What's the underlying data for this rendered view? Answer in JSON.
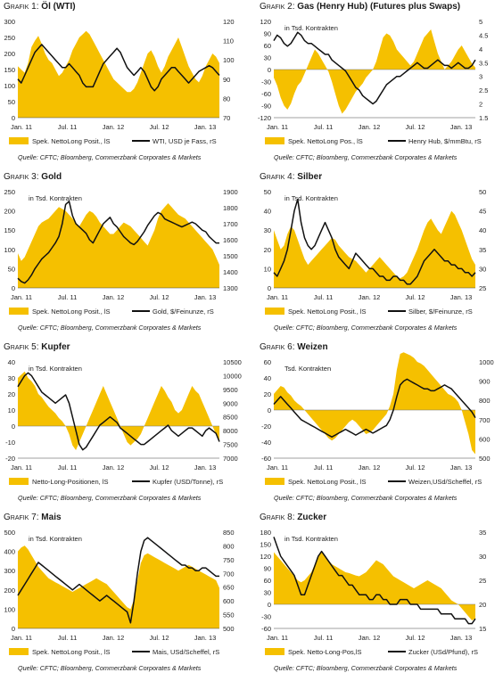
{
  "colors": {
    "fill": "#f5c000",
    "line": "#111111",
    "grid": "#d0d0d0",
    "text": "#222222"
  },
  "source_text": "Quelle: CFTC; Bloomberg, Commerzbank Corporates & Markets",
  "chart_data": [
    {
      "type": "area+line",
      "prefix": "Grafik 1:",
      "name": "Öl (WTI)",
      "suffix": "",
      "unit_label": "",
      "xlabels": [
        "Jan. 11",
        "Jul. 11",
        "Jan. 12",
        "Jul. 12",
        "Jan. 13"
      ],
      "ylim_left": [
        0,
        300
      ],
      "yticks_left": [
        0,
        50,
        100,
        150,
        200,
        250,
        300
      ],
      "ylim_right": [
        70,
        120
      ],
      "yticks_right": [
        70,
        80,
        90,
        100,
        110,
        120
      ],
      "area_label": "Spek. NettoLong Posit., lS",
      "line_label": "WTI, USD je Fass, rS",
      "area": [
        160,
        150,
        140,
        170,
        220,
        240,
        255,
        230,
        200,
        180,
        170,
        150,
        130,
        140,
        160,
        180,
        210,
        230,
        250,
        260,
        270,
        260,
        240,
        220,
        200,
        180,
        160,
        140,
        120,
        110,
        100,
        90,
        80,
        80,
        90,
        110,
        140,
        170,
        200,
        210,
        190,
        160,
        140,
        160,
        190,
        210,
        230,
        250,
        220,
        190,
        160,
        140,
        120,
        110,
        130,
        160,
        180,
        200,
        190,
        170
      ],
      "line": [
        90,
        88,
        92,
        96,
        100,
        104,
        106,
        108,
        106,
        104,
        102,
        100,
        98,
        96,
        96,
        98,
        96,
        94,
        92,
        88,
        86,
        86,
        86,
        90,
        94,
        98,
        100,
        102,
        104,
        106,
        104,
        100,
        96,
        94,
        92,
        94,
        96,
        94,
        90,
        86,
        84,
        86,
        90,
        92,
        94,
        96,
        96,
        94,
        92,
        90,
        88,
        90,
        92,
        94,
        95,
        96,
        97,
        96,
        94,
        92
      ]
    },
    {
      "type": "area+line",
      "prefix": "Grafik 2:",
      "name": "Gas (Henry Hub)",
      "suffix": "(Futures plus Swaps)",
      "unit_label": "in Tsd. Kontrakten",
      "xlabels": [
        "Jan. 11",
        "Jul. 11",
        "Jan. 12",
        "Jul. 12",
        "Jan. 13"
      ],
      "ylim_left": [
        -120,
        120
      ],
      "yticks_left": [
        -120,
        -90,
        -60,
        -30,
        0,
        30,
        60,
        90,
        120
      ],
      "ylim_right": [
        1.5,
        5.0
      ],
      "yticks_right": [
        1.5,
        2.0,
        2.5,
        3.0,
        3.5,
        4.0,
        4.5,
        5.0
      ],
      "area_label": "Spek. NettoLong Pos., lS",
      "line_label": "Henry Hub, $/mmBtu, rS",
      "area": [
        -20,
        -40,
        -70,
        -90,
        -100,
        -85,
        -60,
        -40,
        -30,
        -10,
        10,
        30,
        50,
        40,
        25,
        10,
        -5,
        -30,
        -60,
        -90,
        -110,
        -100,
        -85,
        -70,
        -55,
        -45,
        -35,
        -20,
        -10,
        0,
        20,
        50,
        80,
        90,
        85,
        70,
        50,
        40,
        30,
        20,
        10,
        20,
        40,
        60,
        80,
        90,
        100,
        70,
        40,
        20,
        0,
        10,
        20,
        35,
        50,
        60,
        45,
        30,
        15,
        5
      ],
      "line": [
        4.3,
        4.5,
        4.4,
        4.2,
        4.1,
        4.2,
        4.4,
        4.6,
        4.5,
        4.3,
        4.2,
        4.2,
        4.1,
        4.0,
        3.9,
        3.8,
        3.8,
        3.6,
        3.5,
        3.4,
        3.3,
        3.2,
        3.0,
        2.8,
        2.6,
        2.5,
        2.3,
        2.2,
        2.1,
        2.0,
        2.1,
        2.3,
        2.5,
        2.7,
        2.8,
        2.9,
        3.0,
        3.0,
        3.1,
        3.2,
        3.3,
        3.4,
        3.5,
        3.4,
        3.3,
        3.3,
        3.4,
        3.5,
        3.6,
        3.5,
        3.4,
        3.4,
        3.3,
        3.4,
        3.5,
        3.4,
        3.3,
        3.3,
        3.4,
        3.6
      ]
    },
    {
      "type": "area+line",
      "prefix": "Grafik 3:",
      "name": "Gold",
      "suffix": "",
      "unit_label": "in Tsd. Kontrakten",
      "xlabels": [
        "Jan. 11",
        "Jul. 11",
        "Jan. 12",
        "Jul. 12",
        "Jan. 13"
      ],
      "ylim_left": [
        0,
        250
      ],
      "yticks_left": [
        0,
        50,
        100,
        150,
        200,
        250
      ],
      "ylim_right": [
        1300,
        1900
      ],
      "yticks_right": [
        1300,
        1400,
        1500,
        1600,
        1700,
        1800,
        1900
      ],
      "area_label": "Spek. NettoLong Posit., lS",
      "line_label": "Gold, $/Feinunze, rS",
      "area": [
        90,
        70,
        80,
        100,
        120,
        140,
        160,
        170,
        175,
        180,
        190,
        200,
        210,
        205,
        200,
        190,
        180,
        170,
        160,
        175,
        190,
        200,
        195,
        185,
        170,
        160,
        150,
        140,
        140,
        150,
        160,
        170,
        165,
        160,
        150,
        140,
        130,
        120,
        110,
        130,
        150,
        180,
        200,
        210,
        220,
        210,
        200,
        190,
        185,
        180,
        170,
        160,
        150,
        140,
        130,
        120,
        110,
        100,
        80,
        60
      ],
      "line": [
        1360,
        1340,
        1330,
        1350,
        1380,
        1420,
        1450,
        1480,
        1500,
        1520,
        1550,
        1580,
        1620,
        1700,
        1820,
        1840,
        1750,
        1700,
        1680,
        1660,
        1640,
        1600,
        1580,
        1620,
        1660,
        1700,
        1720,
        1740,
        1700,
        1680,
        1650,
        1620,
        1600,
        1580,
        1570,
        1590,
        1620,
        1650,
        1690,
        1720,
        1750,
        1770,
        1760,
        1730,
        1720,
        1710,
        1700,
        1690,
        1680,
        1690,
        1700,
        1710,
        1700,
        1680,
        1660,
        1650,
        1620,
        1600,
        1580,
        1580
      ]
    },
    {
      "type": "area+line",
      "prefix": "Grafik 4:",
      "name": "Silber",
      "suffix": "",
      "unit_label": "in Tsd. Kontrakten",
      "xlabels": [
        "Jan. 11",
        "Jul. 11",
        "Jan. 12",
        "Jul. 12",
        "Jan. 13"
      ],
      "ylim_left": [
        0,
        50
      ],
      "yticks_left": [
        0,
        10,
        20,
        30,
        40,
        50
      ],
      "ylim_right": [
        25,
        50
      ],
      "yticks_right": [
        25,
        30,
        35,
        40,
        45,
        50
      ],
      "area_label": "Spek. NettoLong Posit., lS",
      "line_label": "Silber, $/Feinunze, rS",
      "area": [
        30,
        25,
        20,
        22,
        28,
        32,
        30,
        25,
        20,
        15,
        12,
        14,
        16,
        18,
        20,
        22,
        24,
        26,
        25,
        22,
        20,
        18,
        16,
        15,
        14,
        12,
        10,
        8,
        10,
        12,
        14,
        16,
        14,
        12,
        10,
        8,
        6,
        5,
        6,
        8,
        12,
        16,
        20,
        25,
        30,
        34,
        36,
        33,
        30,
        28,
        32,
        36,
        40,
        38,
        34,
        30,
        25,
        20,
        15,
        12
      ],
      "line": [
        29,
        28,
        30,
        32,
        35,
        40,
        45,
        48,
        42,
        38,
        36,
        35,
        36,
        38,
        40,
        42,
        40,
        38,
        35,
        33,
        32,
        31,
        30,
        32,
        34,
        33,
        32,
        31,
        30,
        30,
        29,
        28,
        28,
        27,
        27,
        28,
        28,
        27,
        27,
        26,
        26,
        27,
        28,
        30,
        32,
        33,
        34,
        35,
        34,
        33,
        32,
        32,
        31,
        31,
        30,
        30,
        29,
        29,
        28,
        29
      ]
    },
    {
      "type": "area+line",
      "prefix": "Grafik 5:",
      "name": "Kupfer",
      "suffix": "",
      "unit_label": "in Tsd. Kontrakten",
      "xlabels": [
        "Jan. 11",
        "Jul. 11",
        "Jan. 12",
        "Jul. 12",
        "Jan. 13"
      ],
      "ylim_left": [
        -20,
        40
      ],
      "yticks_left": [
        -20,
        -10,
        0,
        10,
        20,
        30,
        40
      ],
      "ylim_right": [
        7000,
        10500
      ],
      "yticks_right": [
        7000,
        7500,
        8000,
        8500,
        9000,
        9500,
        10000,
        10500
      ],
      "area_label": "Netto-Long-Positionen, lS",
      "line_label": "Kupfer (USD/Tonne), rS",
      "area": [
        30,
        32,
        34,
        30,
        28,
        25,
        20,
        18,
        15,
        12,
        10,
        8,
        5,
        3,
        0,
        -5,
        -12,
        -15,
        -10,
        -5,
        0,
        5,
        10,
        15,
        20,
        25,
        20,
        15,
        10,
        5,
        0,
        -5,
        -10,
        -12,
        -10,
        -8,
        -5,
        0,
        5,
        10,
        15,
        20,
        25,
        22,
        18,
        15,
        10,
        8,
        10,
        15,
        20,
        25,
        22,
        20,
        15,
        10,
        5,
        0,
        -5,
        -10
      ],
      "line": [
        9600,
        9800,
        10000,
        10100,
        10000,
        9800,
        9600,
        9400,
        9300,
        9200,
        9100,
        9000,
        9100,
        9200,
        9300,
        9000,
        8500,
        8000,
        7500,
        7300,
        7400,
        7600,
        7800,
        8000,
        8200,
        8300,
        8400,
        8500,
        8400,
        8300,
        8100,
        8000,
        7900,
        7800,
        7700,
        7600,
        7500,
        7500,
        7600,
        7700,
        7800,
        7900,
        8000,
        8100,
        8200,
        8000,
        7900,
        7800,
        7900,
        8000,
        8100,
        8100,
        8000,
        7900,
        7800,
        8000,
        8100,
        8000,
        7900,
        7600
      ]
    },
    {
      "type": "area+line",
      "prefix": "Grafik 6:",
      "name": "Weizen",
      "suffix": "",
      "unit_label": "Tsd. Kontrakten",
      "xlabels": [
        "Jan. 11",
        "Jul. 11",
        "Jan. 12",
        "Jul. 12",
        "Jan. 13"
      ],
      "ylim_left": [
        -60,
        60
      ],
      "yticks_left": [
        -60,
        -40,
        -20,
        0,
        20,
        40,
        60
      ],
      "ylim_right": [
        500,
        1000
      ],
      "yticks_right": [
        500,
        600,
        700,
        800,
        900,
        1000
      ],
      "area_label": "Spek. NettoLong Posit., lS",
      "line_label": "Weizen,USd/Scheffel, rS",
      "area": [
        20,
        25,
        30,
        28,
        22,
        18,
        12,
        8,
        5,
        0,
        -5,
        -10,
        -15,
        -20,
        -25,
        -30,
        -35,
        -38,
        -35,
        -30,
        -25,
        -20,
        -15,
        -12,
        -15,
        -20,
        -25,
        -30,
        -28,
        -25,
        -20,
        -15,
        -10,
        -5,
        5,
        20,
        50,
        70,
        72,
        70,
        68,
        65,
        60,
        58,
        55,
        50,
        45,
        40,
        35,
        30,
        25,
        20,
        18,
        15,
        10,
        0,
        -15,
        -30,
        -50,
        -55
      ],
      "line": [
        780,
        800,
        820,
        800,
        780,
        760,
        740,
        720,
        700,
        690,
        680,
        670,
        660,
        650,
        640,
        630,
        620,
        610,
        620,
        630,
        640,
        650,
        640,
        630,
        620,
        630,
        640,
        650,
        640,
        630,
        640,
        650,
        660,
        670,
        700,
        750,
        820,
        880,
        900,
        910,
        900,
        890,
        880,
        870,
        860,
        860,
        850,
        850,
        860,
        870,
        880,
        870,
        860,
        840,
        820,
        800,
        780,
        760,
        740,
        710
      ]
    },
    {
      "type": "area+line",
      "prefix": "Grafik 7:",
      "name": "Mais",
      "suffix": "",
      "unit_label": "in Tsd. Kontrakten",
      "xlabels": [
        "Jan. 11",
        "Jul. 11",
        "Jan. 12",
        "Jul. 12",
        "Jan. 13"
      ],
      "ylim_left": [
        0,
        500
      ],
      "yticks_left": [
        0,
        100,
        200,
        300,
        400,
        500
      ],
      "ylim_right": [
        500,
        850
      ],
      "yticks_right": [
        500,
        550,
        600,
        650,
        700,
        750,
        800,
        850
      ],
      "area_label": "Spek. NettoLong Posit., lS",
      "line_label": "Mais, USd/Scheffel, rS",
      "area": [
        400,
        420,
        430,
        410,
        380,
        350,
        320,
        300,
        280,
        260,
        250,
        240,
        230,
        220,
        210,
        200,
        190,
        200,
        210,
        220,
        230,
        240,
        250,
        260,
        250,
        240,
        230,
        210,
        190,
        170,
        150,
        130,
        110,
        100,
        150,
        250,
        340,
        380,
        390,
        380,
        370,
        360,
        350,
        340,
        330,
        320,
        310,
        300,
        310,
        320,
        330,
        320,
        310,
        300,
        290,
        280,
        270,
        260,
        250,
        210
      ],
      "line": [
        620,
        640,
        660,
        680,
        700,
        720,
        740,
        730,
        720,
        710,
        700,
        690,
        680,
        670,
        660,
        650,
        640,
        650,
        660,
        650,
        640,
        630,
        620,
        610,
        600,
        610,
        620,
        610,
        600,
        590,
        580,
        570,
        560,
        520,
        600,
        700,
        780,
        820,
        830,
        820,
        810,
        800,
        790,
        780,
        770,
        760,
        750,
        740,
        730,
        730,
        720,
        720,
        710,
        710,
        720,
        720,
        710,
        700,
        690,
        690
      ]
    },
    {
      "type": "area+line",
      "prefix": "Grafik 8:",
      "name": "Zucker",
      "suffix": "",
      "unit_label": "in Tsd. Kontrakten",
      "xlabels": [
        "Jan. 11",
        "Jul. 11",
        "Jan. 12",
        "Jul. 12",
        "Jan. 13"
      ],
      "ylim_left": [
        -60,
        180
      ],
      "yticks_left": [
        -60,
        -30,
        0,
        30,
        60,
        90,
        120,
        150,
        180
      ],
      "ylim_right": [
        15,
        35
      ],
      "yticks_right": [
        15,
        20,
        25,
        30,
        35
      ],
      "area_label": "Spek. Netto-Long-Pos,lS",
      "line_label": "Zucker (USd/Pfund), rS",
      "area": [
        130,
        120,
        110,
        100,
        90,
        80,
        70,
        60,
        55,
        60,
        70,
        80,
        100,
        120,
        130,
        120,
        110,
        100,
        95,
        90,
        85,
        80,
        78,
        75,
        72,
        70,
        75,
        80,
        90,
        100,
        110,
        105,
        100,
        90,
        80,
        70,
        65,
        60,
        55,
        50,
        45,
        40,
        45,
        50,
        55,
        60,
        55,
        50,
        45,
        40,
        30,
        20,
        10,
        5,
        0,
        -10,
        -20,
        -30,
        -40,
        -35
      ],
      "line": [
        34,
        32,
        30,
        29,
        28,
        27,
        26,
        24,
        22,
        22,
        24,
        26,
        28,
        30,
        31,
        30,
        29,
        28,
        27,
        26,
        26,
        25,
        24,
        24,
        23,
        22,
        22,
        22,
        21,
        21,
        22,
        22,
        21,
        21,
        20,
        20,
        20,
        21,
        21,
        21,
        20,
        20,
        20,
        19,
        19,
        19,
        19,
        19,
        19,
        18,
        18,
        18,
        18,
        17,
        17,
        17,
        17,
        16,
        16,
        17
      ]
    }
  ]
}
